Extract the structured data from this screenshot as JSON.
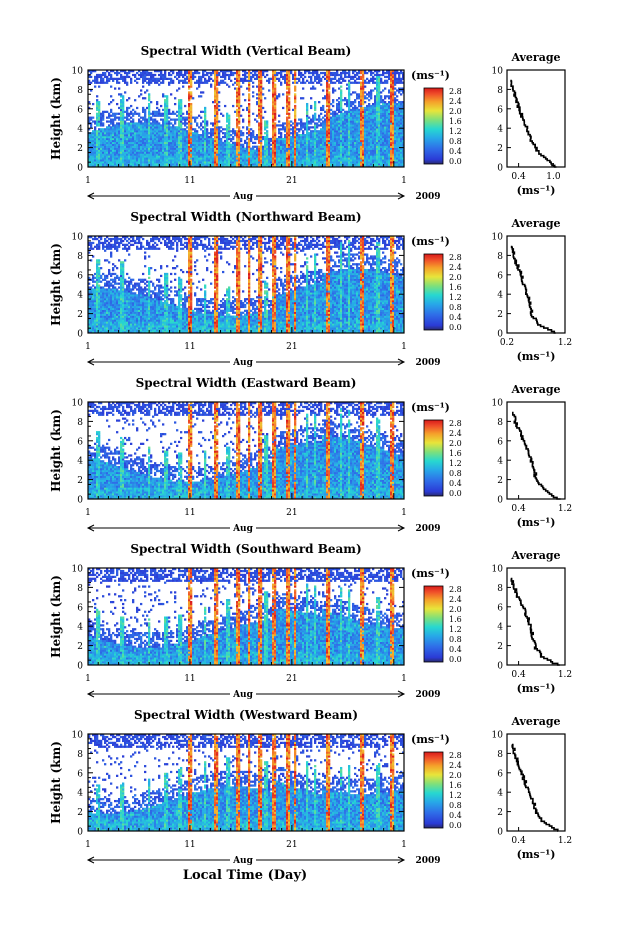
{
  "figure": {
    "xlabel": "Local Time (Day)",
    "month_label": "Aug",
    "year_label": "2009",
    "colorbar_unit": "(ms⁻¹)",
    "colorbar_ticks": [
      "0.0",
      "0.4",
      "0.8",
      "1.2",
      "1.6",
      "2.0",
      "2.4",
      "2.8"
    ],
    "avg_title": "Average",
    "avg_xlabel": "(ms⁻¹)",
    "main_ylabel": "Height (km)",
    "main_yticks": [
      "0",
      "2",
      "4",
      "6",
      "8",
      "10"
    ],
    "main_xticks": [
      "1",
      "11",
      "21",
      "1"
    ]
  },
  "chart_data": [
    {
      "type": "heatmap",
      "title": "Spectral Width (Vertical Beam)",
      "ylabel": "Height (km)",
      "x_range_days": [
        1,
        32
      ],
      "ylim": [
        0,
        10
      ],
      "color_range": [
        0.0,
        2.8
      ],
      "average_profile": {
        "title": "Average",
        "xticks": [
          "0.4",
          "1.0"
        ],
        "xlim": [
          0.2,
          1.2
        ],
        "ylim": [
          0,
          10
        ],
        "height_km": [
          0,
          1,
          2,
          3,
          4,
          5,
          6,
          7,
          8,
          9
        ],
        "width_ms": [
          1.05,
          0.85,
          0.7,
          0.6,
          0.55,
          0.48,
          0.42,
          0.36,
          0.3,
          0.27
        ]
      }
    },
    {
      "type": "heatmap",
      "title": "Spectral Width (Northward Beam)",
      "ylabel": "Height (km)",
      "x_range_days": [
        1,
        32
      ],
      "ylim": [
        0,
        10
      ],
      "color_range": [
        0.0,
        2.8
      ],
      "average_profile": {
        "title": "Average",
        "xticks": [
          "0.2",
          "1.2"
        ],
        "xlim": [
          0.2,
          1.2
        ],
        "ylim": [
          0,
          10
        ],
        "height_km": [
          0,
          1,
          2,
          3,
          4,
          5,
          6,
          7,
          8,
          9
        ],
        "width_ms": [
          1.05,
          0.75,
          0.62,
          0.6,
          0.55,
          0.5,
          0.45,
          0.38,
          0.32,
          0.28
        ]
      }
    },
    {
      "type": "heatmap",
      "title": "Spectral Width (Eastward Beam)",
      "ylabel": "Height (km)",
      "x_range_days": [
        1,
        32
      ],
      "ylim": [
        0,
        10
      ],
      "color_range": [
        0.0,
        2.8
      ],
      "average_profile": {
        "title": "Average",
        "xticks": [
          "0.4",
          "1.2"
        ],
        "xlim": [
          0.2,
          1.2
        ],
        "ylim": [
          0,
          10
        ],
        "height_km": [
          0,
          1,
          2,
          3,
          4,
          5,
          6,
          7,
          8,
          9
        ],
        "width_ms": [
          1.1,
          0.85,
          0.7,
          0.68,
          0.62,
          0.58,
          0.5,
          0.42,
          0.35,
          0.3
        ]
      }
    },
    {
      "type": "heatmap",
      "title": "Spectral Width (Southward Beam)",
      "ylabel": "Height (km)",
      "x_range_days": [
        1,
        32
      ],
      "ylim": [
        0,
        10
      ],
      "color_range": [
        0.0,
        2.8
      ],
      "average_profile": {
        "title": "Average",
        "xticks": [
          "0.4",
          "1.2"
        ],
        "xlim": [
          0.2,
          1.2
        ],
        "ylim": [
          0,
          10
        ],
        "height_km": [
          0,
          1,
          2,
          3,
          4,
          5,
          6,
          7,
          8,
          9
        ],
        "width_ms": [
          1.1,
          0.8,
          0.68,
          0.65,
          0.6,
          0.55,
          0.48,
          0.4,
          0.33,
          0.28
        ]
      }
    },
    {
      "type": "heatmap",
      "title": "Spectral Width (Westward Beam)",
      "ylabel": "Height (km)",
      "x_range_days": [
        1,
        32
      ],
      "ylim": [
        0,
        10
      ],
      "color_range": [
        0.0,
        2.8
      ],
      "average_profile": {
        "title": "Average",
        "xticks": [
          "0.4",
          "1.2"
        ],
        "xlim": [
          0.2,
          1.2
        ],
        "ylim": [
          0,
          10
        ],
        "height_km": [
          0,
          1,
          2,
          3,
          4,
          5,
          6,
          7,
          8,
          9
        ],
        "width_ms": [
          1.1,
          0.82,
          0.7,
          0.66,
          0.6,
          0.52,
          0.46,
          0.4,
          0.34,
          0.3
        ]
      }
    }
  ]
}
